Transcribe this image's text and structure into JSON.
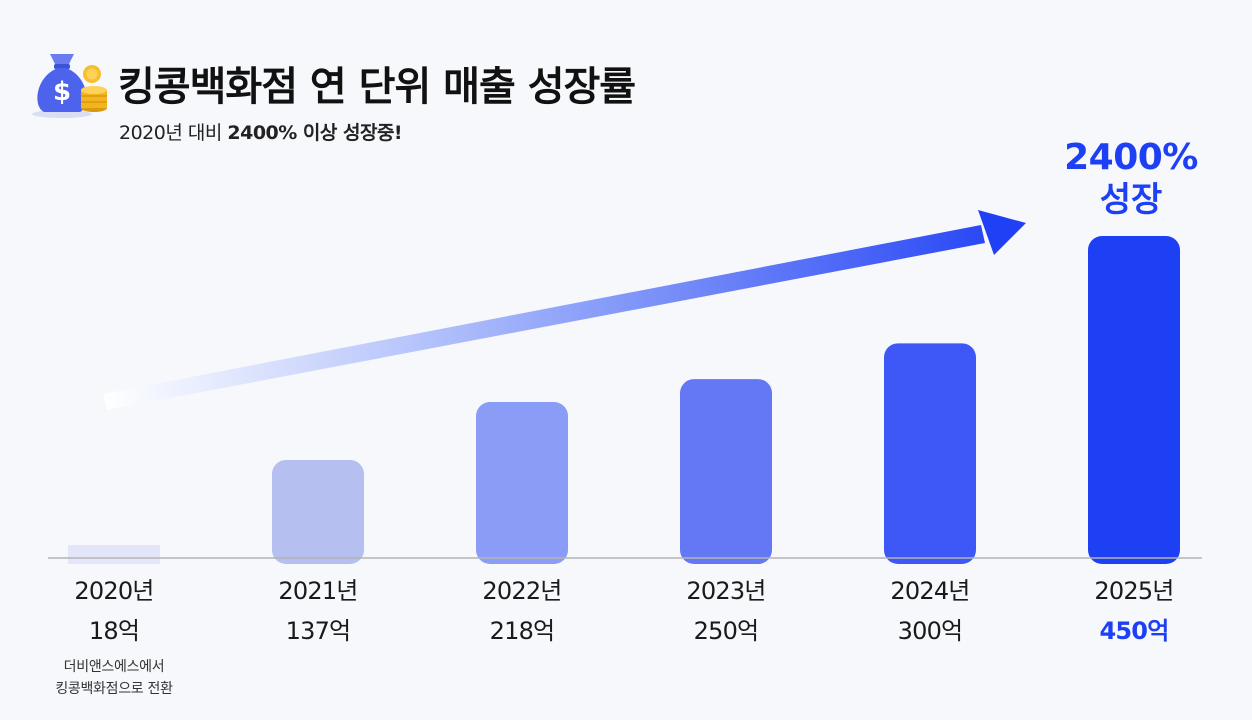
{
  "title": "킹콩백화점 연 단위 매출 성장률",
  "subtitle": {
    "prefix": "2020년 대비 ",
    "bold": "2400% 이상 성장중!"
  },
  "headline": {
    "percent": "2400%",
    "word": "성장"
  },
  "colors": {
    "accent": "#1d40f5",
    "bars": [
      "#e3e6f8",
      "#b5c0f1",
      "#8a9cf5",
      "#6478f6",
      "#3d58f7",
      "#1d40f5"
    ]
  },
  "icons": [
    "money-bag-icon",
    "coin-stack-icon",
    "trend-arrow"
  ],
  "chart_data": {
    "type": "bar",
    "categories": [
      "2020년",
      "2021년",
      "2022년",
      "2023년",
      "2024년",
      "2025년"
    ],
    "values": [
      18,
      137,
      218,
      250,
      300,
      450
    ],
    "value_labels": [
      "18억",
      "137억",
      "218억",
      "250억",
      "300억",
      "450억"
    ],
    "notes": [
      "더비앤스에스에서\n킹콩백화점으로 전환",
      "",
      "",
      "",
      "",
      ""
    ],
    "ylim": [
      0,
      450
    ],
    "grid": false,
    "legend": "none"
  }
}
